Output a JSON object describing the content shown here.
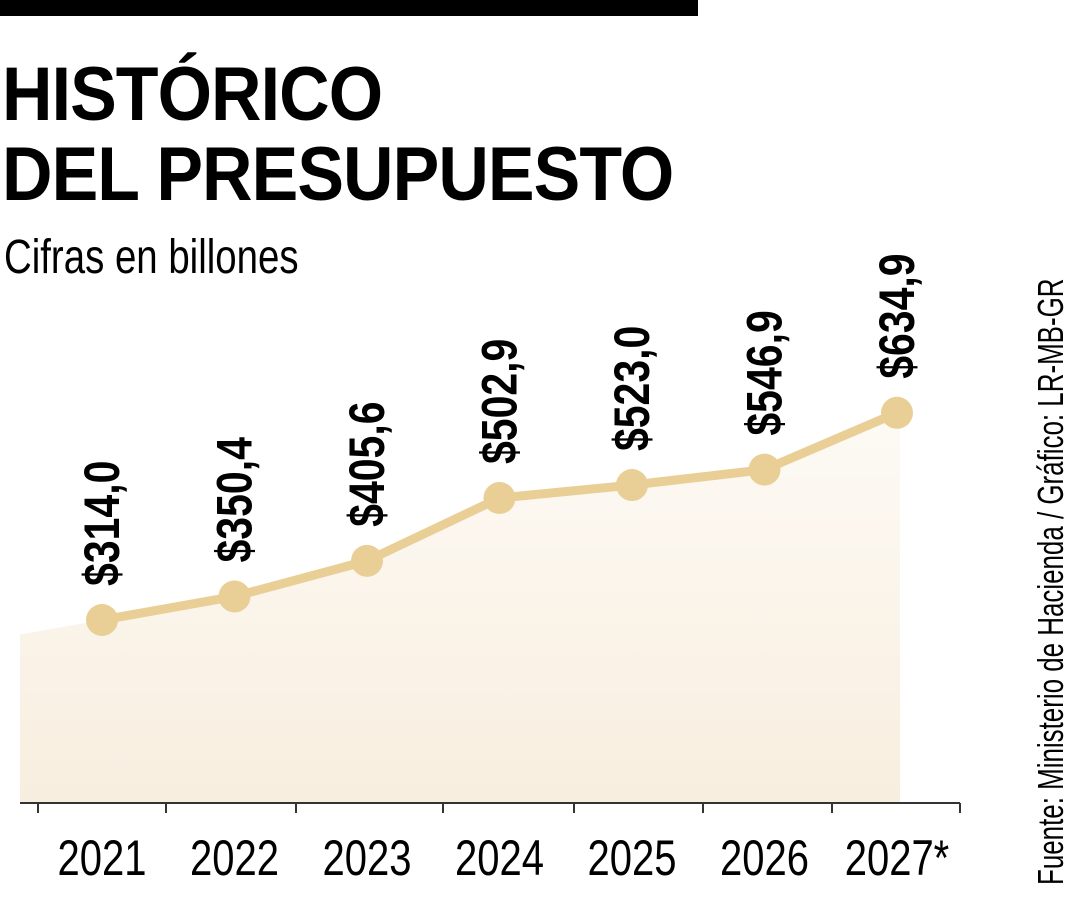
{
  "title_line1": "HISTÓRICO",
  "title_line2": "DEL PRESUPUESTO",
  "subtitle": "Cifras en billones",
  "source": "Fuente: Ministerio de Hacienda / Gráfico: LR-MB-GR",
  "chart_data": {
    "type": "line",
    "title": "HISTÓRICO DEL PRESUPUESTO",
    "subtitle": "Cifras en billones",
    "categories": [
      "2021",
      "2022",
      "2023",
      "2024",
      "2025",
      "2026",
      "2027*"
    ],
    "values": [
      314.0,
      350.4,
      405.6,
      502.9,
      523.0,
      546.9,
      634.9
    ],
    "value_labels": [
      "$314,0",
      "$350,4",
      "$405,6",
      "$502,9",
      "$523,0",
      "$546,9",
      "$634,9"
    ],
    "xlabel": "",
    "ylabel": "",
    "grid": false,
    "colors": {
      "line": "#e9cf96",
      "area": "#fbf5ec",
      "axis": "#333333"
    }
  }
}
